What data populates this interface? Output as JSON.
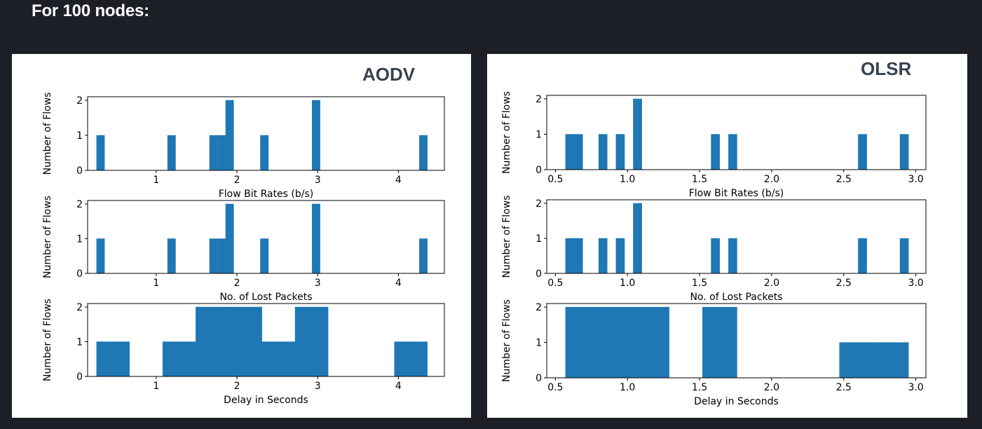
{
  "page": {
    "heading": "For 100 nodes:"
  },
  "colors": {
    "bar": "#1f77b4",
    "bar_edge": "#2b82c0",
    "background": "#1c1f26",
    "panel": "#ffffff"
  },
  "chart_data": [
    {
      "type": "bar",
      "panel": "AODV",
      "title": "AODV",
      "subplots": [
        {
          "xlabel": "Flow Bit Rates (b/s)",
          "ylabel": "Number of Flows",
          "xticks": [
            "1",
            "2",
            "3",
            "4"
          ],
          "yticks": [
            "0",
            "1",
            "2"
          ],
          "xlim": [
            0.15,
            4.57
          ],
          "ylim": [
            0,
            2.1
          ],
          "bars": [
            {
              "x0": 0.26,
              "x1": 0.36,
              "value": 1
            },
            {
              "x0": 1.14,
              "x1": 1.24,
              "value": 1
            },
            {
              "x0": 1.66,
              "x1": 1.76,
              "value": 1
            },
            {
              "x0": 1.76,
              "x1": 1.86,
              "value": 1
            },
            {
              "x0": 1.86,
              "x1": 1.96,
              "value": 2
            },
            {
              "x0": 2.29,
              "x1": 2.39,
              "value": 1
            },
            {
              "x0": 2.93,
              "x1": 3.03,
              "value": 2
            },
            {
              "x0": 4.26,
              "x1": 4.36,
              "value": 1
            }
          ]
        },
        {
          "xlabel": "No. of Lost Packets",
          "ylabel": "Number of Flows",
          "xticks": [
            "1",
            "2",
            "3",
            "4"
          ],
          "yticks": [
            "0",
            "1",
            "2"
          ],
          "xlim": [
            0.15,
            4.57
          ],
          "ylim": [
            0,
            2.1
          ],
          "bars": [
            {
              "x0": 0.26,
              "x1": 0.36,
              "value": 1
            },
            {
              "x0": 1.14,
              "x1": 1.24,
              "value": 1
            },
            {
              "x0": 1.66,
              "x1": 1.76,
              "value": 1
            },
            {
              "x0": 1.76,
              "x1": 1.86,
              "value": 1
            },
            {
              "x0": 1.86,
              "x1": 1.96,
              "value": 2
            },
            {
              "x0": 2.29,
              "x1": 2.39,
              "value": 1
            },
            {
              "x0": 2.93,
              "x1": 3.03,
              "value": 2
            },
            {
              "x0": 4.26,
              "x1": 4.36,
              "value": 1
            }
          ]
        },
        {
          "xlabel": "Delay in Seconds",
          "ylabel": "Number of Flows",
          "xticks": [
            "1",
            "2",
            "3",
            "4"
          ],
          "yticks": [
            "0",
            "1",
            "2"
          ],
          "xlim": [
            0.15,
            4.57
          ],
          "ylim": [
            0,
            2.1
          ],
          "bars": [
            {
              "x0": 0.26,
              "x1": 0.67,
              "value": 1
            },
            {
              "x0": 1.08,
              "x1": 1.49,
              "value": 1
            },
            {
              "x0": 1.49,
              "x1": 1.9,
              "value": 2
            },
            {
              "x0": 1.9,
              "x1": 2.31,
              "value": 2
            },
            {
              "x0": 2.31,
              "x1": 2.72,
              "value": 1
            },
            {
              "x0": 2.72,
              "x1": 3.13,
              "value": 2
            },
            {
              "x0": 3.95,
              "x1": 4.36,
              "value": 1
            }
          ]
        }
      ]
    },
    {
      "type": "bar",
      "panel": "OLSR",
      "title": "OLSR",
      "subplots": [
        {
          "xlabel": "Flow Bit Rates (b/s)",
          "ylabel": "Number of Flows",
          "xticks": [
            "0.5",
            "1.0",
            "1.5",
            "2.0",
            "2.5",
            "3.0"
          ],
          "yticks": [
            "0",
            "1",
            "2"
          ],
          "xlim": [
            0.44,
            3.07
          ],
          "ylim": [
            0,
            2.1
          ],
          "bars": [
            {
              "x0": 0.57,
              "x1": 0.63,
              "value": 1
            },
            {
              "x0": 0.63,
              "x1": 0.69,
              "value": 1
            },
            {
              "x0": 0.8,
              "x1": 0.86,
              "value": 1
            },
            {
              "x0": 0.92,
              "x1": 0.98,
              "value": 1
            },
            {
              "x0": 1.04,
              "x1": 1.1,
              "value": 2
            },
            {
              "x0": 1.58,
              "x1": 1.64,
              "value": 1
            },
            {
              "x0": 1.7,
              "x1": 1.76,
              "value": 1
            },
            {
              "x0": 2.6,
              "x1": 2.66,
              "value": 1
            },
            {
              "x0": 2.89,
              "x1": 2.95,
              "value": 1
            }
          ]
        },
        {
          "xlabel": "No. of Lost Packets",
          "ylabel": "Number of Flows",
          "xticks": [
            "0.5",
            "1.0",
            "1.5",
            "2.0",
            "2.5",
            "3.0"
          ],
          "yticks": [
            "0",
            "1",
            "2"
          ],
          "xlim": [
            0.44,
            3.07
          ],
          "ylim": [
            0,
            2.1
          ],
          "bars": [
            {
              "x0": 0.57,
              "x1": 0.63,
              "value": 1
            },
            {
              "x0": 0.63,
              "x1": 0.69,
              "value": 1
            },
            {
              "x0": 0.8,
              "x1": 0.86,
              "value": 1
            },
            {
              "x0": 0.92,
              "x1": 0.98,
              "value": 1
            },
            {
              "x0": 1.04,
              "x1": 1.1,
              "value": 2
            },
            {
              "x0": 1.58,
              "x1": 1.64,
              "value": 1
            },
            {
              "x0": 1.7,
              "x1": 1.76,
              "value": 1
            },
            {
              "x0": 2.6,
              "x1": 2.66,
              "value": 1
            },
            {
              "x0": 2.89,
              "x1": 2.95,
              "value": 1
            }
          ]
        },
        {
          "xlabel": "Delay in Seconds",
          "ylabel": "Number of Flows",
          "xticks": [
            "0.5",
            "1.0",
            "1.5",
            "2.0",
            "2.5",
            "3.0"
          ],
          "yticks": [
            "0",
            "1",
            "2"
          ],
          "xlim": [
            0.44,
            3.07
          ],
          "ylim": [
            0,
            2.1
          ],
          "bars": [
            {
              "x0": 0.57,
              "x1": 0.81,
              "value": 2
            },
            {
              "x0": 0.81,
              "x1": 1.05,
              "value": 2
            },
            {
              "x0": 1.05,
              "x1": 1.29,
              "value": 2
            },
            {
              "x0": 1.52,
              "x1": 1.76,
              "value": 2
            },
            {
              "x0": 2.47,
              "x1": 2.71,
              "value": 1
            },
            {
              "x0": 2.71,
              "x1": 2.95,
              "value": 1
            }
          ]
        }
      ]
    }
  ]
}
